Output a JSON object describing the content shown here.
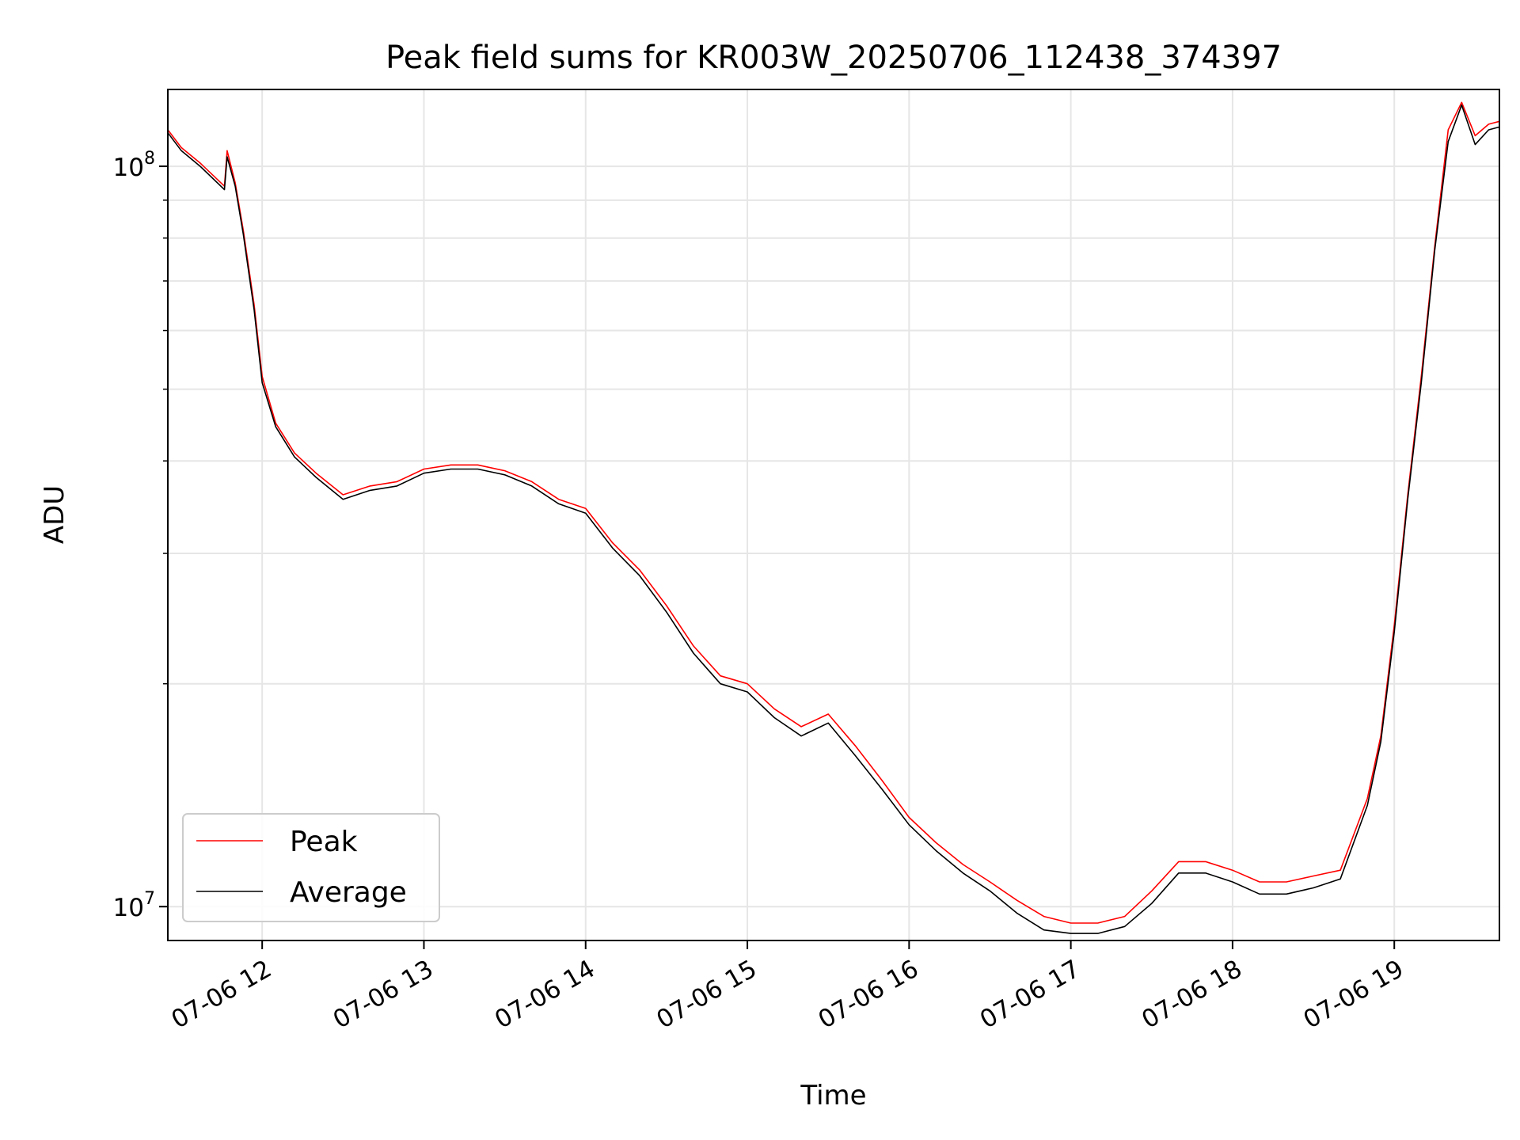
{
  "chart_data": {
    "type": "line",
    "title": "Peak field sums for KR003W_20250706_112438_374397",
    "xlabel": "Time",
    "ylabel": "ADU",
    "y_scale": "log",
    "ylim": [
      9000000,
      127000000
    ],
    "xlim": [
      "07-06 11:25",
      "07-06 19:39"
    ],
    "grid": true,
    "legend_position": "lower-left",
    "x_ticks": [
      "07-06 12",
      "07-06 13",
      "07-06 14",
      "07-06 15",
      "07-06 16",
      "07-06 17",
      "07-06 18",
      "07-06 19"
    ],
    "y_ticks": [
      {
        "value": 10000000,
        "mantissa": "10",
        "exp": "7"
      },
      {
        "value": 100000000,
        "mantissa": "10",
        "exp": "8"
      }
    ],
    "x": [
      "07-06 11:25",
      "07-06 11:30",
      "07-06 11:37",
      "07-06 11:46",
      "07-06 11:47",
      "07-06 11:50",
      "07-06 11:53",
      "07-06 11:57",
      "07-06 12:00",
      "07-06 12:05",
      "07-06 12:12",
      "07-06 12:20",
      "07-06 12:30",
      "07-06 12:40",
      "07-06 12:50",
      "07-06 13:00",
      "07-06 13:10",
      "07-06 13:20",
      "07-06 13:30",
      "07-06 13:40",
      "07-06 13:50",
      "07-06 14:00",
      "07-06 14:10",
      "07-06 14:20",
      "07-06 14:30",
      "07-06 14:40",
      "07-06 14:50",
      "07-06 15:00",
      "07-06 15:10",
      "07-06 15:20",
      "07-06 15:30",
      "07-06 15:40",
      "07-06 15:50",
      "07-06 16:00",
      "07-06 16:10",
      "07-06 16:20",
      "07-06 16:30",
      "07-06 16:40",
      "07-06 16:50",
      "07-06 17:00",
      "07-06 17:10",
      "07-06 17:20",
      "07-06 17:30",
      "07-06 17:40",
      "07-06 17:50",
      "07-06 18:00",
      "07-06 18:10",
      "07-06 18:20",
      "07-06 18:30",
      "07-06 18:40",
      "07-06 18:50",
      "07-06 18:55",
      "07-06 19:00",
      "07-06 19:05",
      "07-06 19:10",
      "07-06 19:15",
      "07-06 19:20",
      "07-06 19:25",
      "07-06 19:30",
      "07-06 19:35",
      "07-06 19:39"
    ],
    "series": [
      {
        "name": "Peak",
        "color": "#ff0000",
        "values": [
          112000000,
          106000000,
          101000000,
          94000000,
          105000000,
          95000000,
          82000000,
          65000000,
          52000000,
          45000000,
          41000000,
          38500000,
          36000000,
          37000000,
          37500000,
          39000000,
          39500000,
          39500000,
          38800000,
          37500000,
          35500000,
          34500000,
          31000000,
          28500000,
          25500000,
          22500000,
          20500000,
          20000000,
          18500000,
          17500000,
          18200000,
          16500000,
          14800000,
          13200000,
          12200000,
          11400000,
          10800000,
          10200000,
          9700000,
          9500000,
          9500000,
          9700000,
          10500000,
          11500000,
          11500000,
          11200000,
          10800000,
          10800000,
          11000000,
          11200000,
          14000000,
          17000000,
          24000000,
          36000000,
          52000000,
          78000000,
          112000000,
          122000000,
          110000000,
          114000000,
          115000000
        ]
      },
      {
        "name": "Average",
        "color": "#000000",
        "values": [
          111000000,
          105000000,
          100000000,
          93000000,
          103000000,
          94000000,
          81000000,
          64000000,
          51000000,
          44500000,
          40500000,
          38000000,
          35500000,
          36500000,
          37000000,
          38500000,
          39000000,
          39000000,
          38300000,
          37000000,
          35000000,
          34000000,
          30500000,
          28000000,
          25000000,
          22000000,
          20000000,
          19500000,
          18000000,
          17000000,
          17700000,
          16000000,
          14400000,
          12900000,
          11900000,
          11100000,
          10500000,
          9800000,
          9300000,
          9200000,
          9200000,
          9400000,
          10100000,
          11100000,
          11100000,
          10800000,
          10400000,
          10400000,
          10600000,
          10900000,
          13700000,
          16700000,
          23500000,
          35500000,
          51000000,
          77000000,
          108000000,
          121000000,
          107000000,
          112000000,
          113000000
        ]
      }
    ]
  }
}
